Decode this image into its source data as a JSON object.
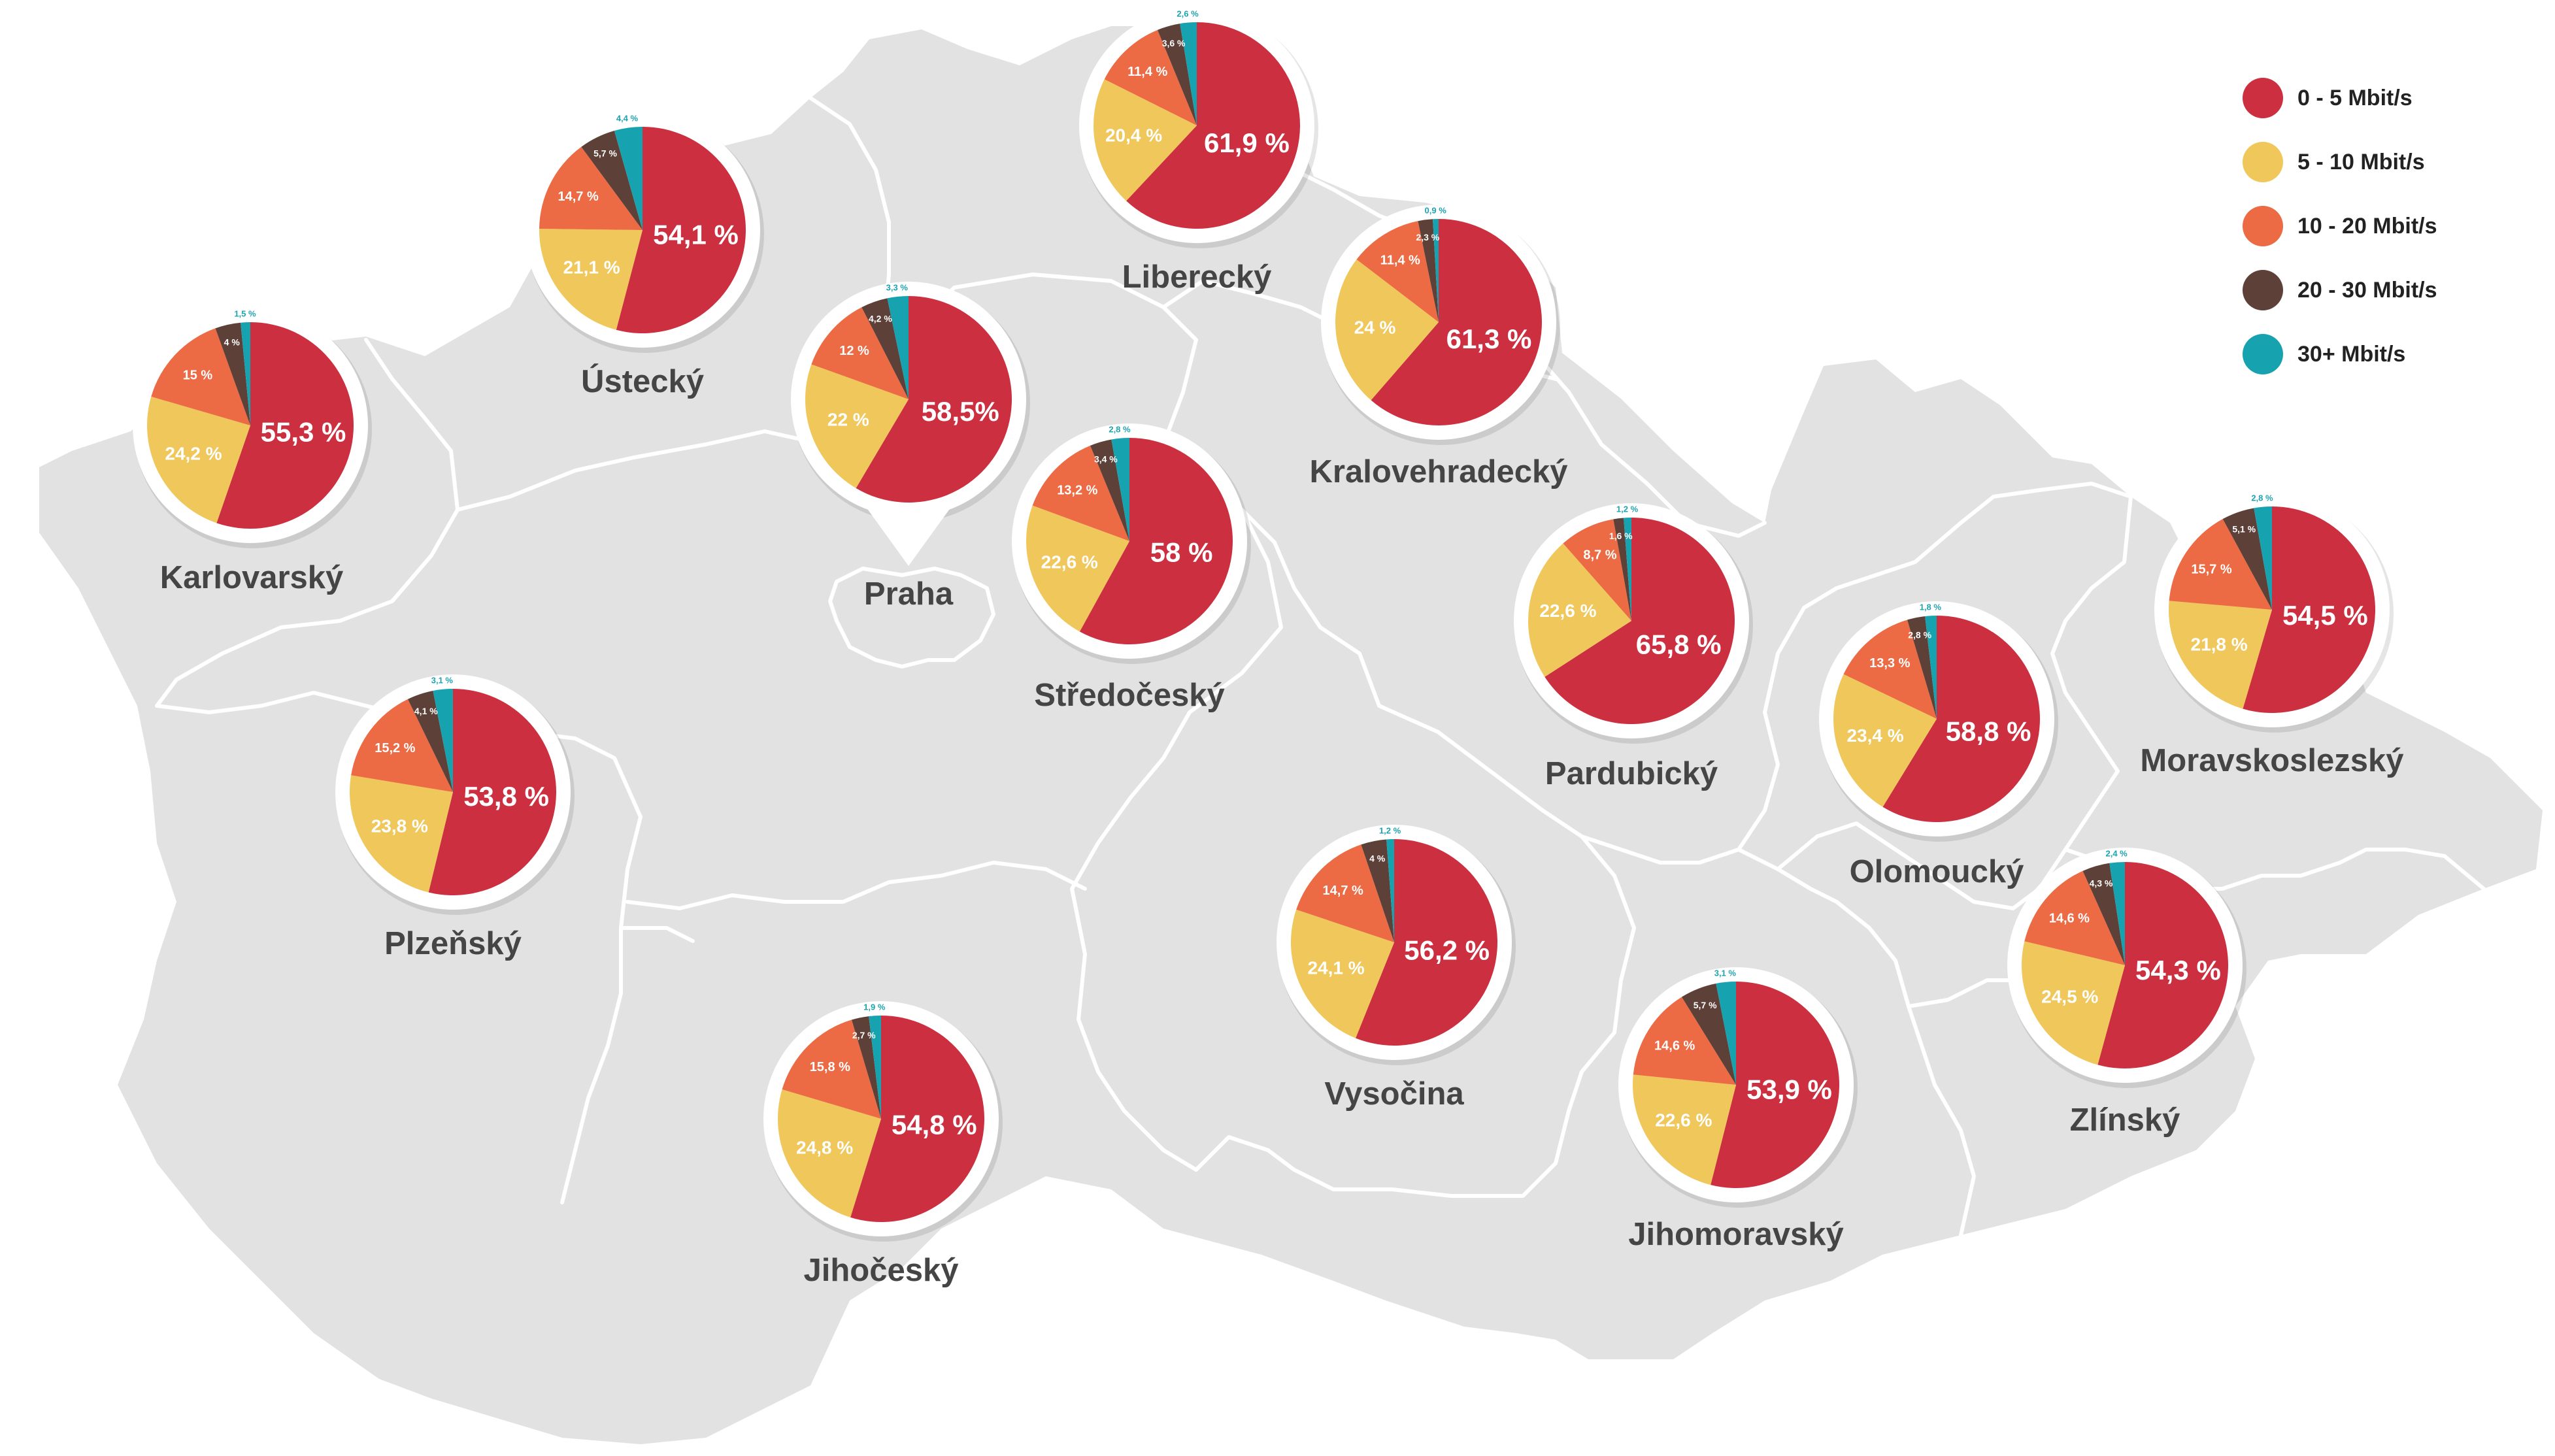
{
  "chart_data": {
    "type": "pie",
    "legend": {
      "placement": "top-right",
      "items": [
        {
          "label": "0 - 5 Mbit/s",
          "color": "#cc3040"
        },
        {
          "label": "5 - 10 Mbit/s",
          "color": "#efc75a"
        },
        {
          "label": "10 - 20 Mbit/s",
          "color": "#ec6a44"
        },
        {
          "label": "20 - 30 Mbit/s",
          "color": "#5d4037"
        },
        {
          "label": "30+ Mbit/s",
          "color": "#17a2b0"
        }
      ]
    },
    "regions": [
      {
        "name": "Karlovarský",
        "values": [
          55.3,
          24.2,
          15,
          4,
          1.5
        ],
        "labels": [
          "55,3 %",
          "24,2 %",
          "15 %",
          "4 %",
          "1,5 %"
        ]
      },
      {
        "name": "Ústecký",
        "values": [
          54.1,
          21.1,
          14.7,
          5.7,
          4.4
        ],
        "labels": [
          "54,1 %",
          "21,1 %",
          "14,7 %",
          "5,7 %",
          "4,4 %"
        ]
      },
      {
        "name": "Praha",
        "values": [
          58.5,
          22,
          12,
          4.2,
          3.3
        ],
        "labels": [
          "58,5%",
          "22 %",
          "12 %",
          "4,2 %",
          "3,3 %"
        ]
      },
      {
        "name": "Liberecký",
        "values": [
          61.9,
          20.4,
          11.4,
          3.6,
          2.6
        ],
        "labels": [
          "61,9 %",
          "20,4 %",
          "11,4 %",
          "3,6 %",
          "2,6 %"
        ]
      },
      {
        "name": "Kralovehradecký",
        "values": [
          61.3,
          24,
          11.4,
          2.3,
          0.9
        ],
        "labels": [
          "61,3 %",
          "24 %",
          "11,4 %",
          "2,3 %",
          "0,9 %"
        ]
      },
      {
        "name": "Středočeský",
        "values": [
          58,
          22.6,
          13.2,
          3.4,
          2.8
        ],
        "labels": [
          "58 %",
          "22,6 %",
          "13,2 %",
          "3,4 %",
          "2,8 %"
        ]
      },
      {
        "name": "Pardubický",
        "values": [
          65.8,
          22.6,
          8.7,
          1.6,
          1.2
        ],
        "labels": [
          "65,8 %",
          "22,6 %",
          "8,7 %",
          "1,6 %",
          "1,2 %"
        ]
      },
      {
        "name": "Olomoucký",
        "values": [
          58.8,
          23.4,
          13.3,
          2.8,
          1.8
        ],
        "labels": [
          "58,8 %",
          "23,4 %",
          "13,3 %",
          "2,8 %",
          "1,8 %"
        ]
      },
      {
        "name": "Moravskoslezský",
        "values": [
          54.5,
          21.8,
          15.7,
          5.1,
          2.8
        ],
        "labels": [
          "54,5 %",
          "21,8 %",
          "15,7 %",
          "5,1 %",
          "2,8 %"
        ]
      },
      {
        "name": "Plzeňský",
        "values": [
          53.8,
          23.8,
          15.2,
          4.1,
          3.1
        ],
        "labels": [
          "53,8 %",
          "23,8 %",
          "15,2 %",
          "4,1 %",
          "3,1 %"
        ]
      },
      {
        "name": "Vysočina",
        "values": [
          56.2,
          24.1,
          14.7,
          4,
          1.2
        ],
        "labels": [
          "56,2 %",
          "24,1 %",
          "14,7 %",
          "4 %",
          "1,2 %"
        ]
      },
      {
        "name": "Jihočeský",
        "values": [
          54.8,
          24.8,
          15.8,
          2.7,
          1.9
        ],
        "labels": [
          "54,8 %",
          "24,8 %",
          "15,8 %",
          "2,7 %",
          "1,9 %"
        ]
      },
      {
        "name": "Jihomoravský",
        "values": [
          53.9,
          22.6,
          14.6,
          5.7,
          3.1
        ],
        "labels": [
          "53,9 %",
          "22,6 %",
          "14,6 %",
          "5,7 %",
          "3,1 %"
        ]
      },
      {
        "name": "Zlínský",
        "values": [
          54.3,
          24.5,
          14.6,
          4.3,
          2.4
        ],
        "labels": [
          "54,3 %",
          "24,5 %",
          "14,6 %",
          "4,3 %",
          "2,4 %"
        ]
      }
    ]
  }
}
